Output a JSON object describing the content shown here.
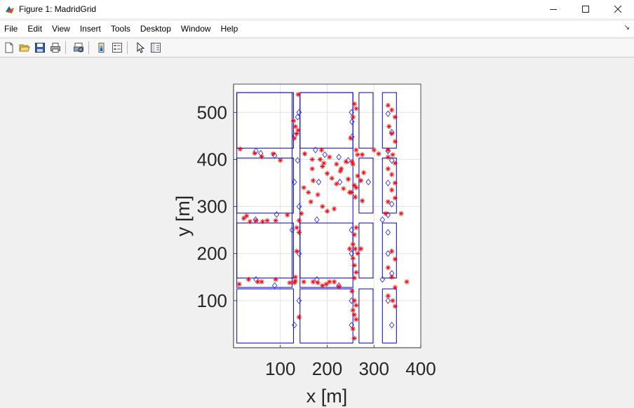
{
  "window": {
    "title": "Figure 1: MadridGrid"
  },
  "menu": [
    "File",
    "Edit",
    "View",
    "Insert",
    "Tools",
    "Desktop",
    "Window",
    "Help"
  ],
  "toolbar": [
    "new-figure-icon",
    "open-file-icon",
    "save-icon",
    "print-icon",
    "print-preview-icon",
    "colorbar-icon",
    "legend-icon",
    "pointer-icon",
    "property-editor-icon"
  ],
  "colors": {
    "blocks": "#0000cc",
    "diamonds": "#3333ee",
    "stars": "#ff0000",
    "grid": "#e2e2e2"
  },
  "chart_data": {
    "type": "scatter",
    "title": "",
    "xlabel": "x [m]",
    "ylabel": "y [m]",
    "xlim": [
      0,
      400
    ],
    "ylim": [
      0,
      560
    ],
    "xticks": [
      100,
      200,
      300,
      400
    ],
    "yticks": [
      100,
      200,
      300,
      400,
      500
    ],
    "grid": true,
    "building_blocks": [
      [
        7,
        125,
        128,
        542
      ],
      [
        142,
        255,
        128,
        542
      ],
      [
        7,
        128,
        10,
        125
      ],
      [
        142,
        255,
        10,
        125
      ],
      [
        7,
        128,
        148,
        265
      ],
      [
        142,
        255,
        148,
        265
      ],
      [
        7,
        128,
        286,
        403
      ],
      [
        7,
        128,
        424,
        542
      ],
      [
        142,
        255,
        424,
        542
      ],
      [
        268,
        298,
        424,
        542
      ],
      [
        318,
        348,
        424,
        542
      ],
      [
        268,
        298,
        286,
        403
      ],
      [
        318,
        348,
        286,
        403
      ],
      [
        268,
        298,
        148,
        265
      ],
      [
        318,
        348,
        148,
        265
      ],
      [
        268,
        298,
        10,
        125
      ],
      [
        318,
        348,
        10,
        125
      ]
    ],
    "diamonds": [
      [
        140,
        500
      ],
      [
        137,
        490
      ],
      [
        130,
        450
      ],
      [
        252,
        500
      ],
      [
        253,
        480
      ],
      [
        253,
        448
      ],
      [
        48,
        418
      ],
      [
        58,
        413
      ],
      [
        88,
        408
      ],
      [
        137,
        398
      ],
      [
        175,
        420
      ],
      [
        195,
        410
      ],
      [
        225,
        405
      ],
      [
        245,
        398
      ],
      [
        130,
        352
      ],
      [
        182,
        352
      ],
      [
        227,
        352
      ],
      [
        288,
        352
      ],
      [
        140,
        300
      ],
      [
        92,
        283
      ],
      [
        47,
        272
      ],
      [
        178,
        272
      ],
      [
        125,
        250
      ],
      [
        252,
        250
      ],
      [
        140,
        200
      ],
      [
        252,
        200
      ],
      [
        48,
        145
      ],
      [
        88,
        132
      ],
      [
        178,
        145
      ],
      [
        225,
        132
      ],
      [
        140,
        100
      ],
      [
        130,
        48
      ],
      [
        252,
        100
      ],
      [
        252,
        48
      ],
      [
        330,
        497
      ],
      [
        338,
        458
      ],
      [
        330,
        418
      ],
      [
        338,
        398
      ],
      [
        330,
        350
      ],
      [
        338,
        305
      ],
      [
        330,
        282
      ],
      [
        318,
        272
      ],
      [
        330,
        245
      ],
      [
        330,
        200
      ],
      [
        338,
        158
      ],
      [
        318,
        145
      ],
      [
        330,
        100
      ],
      [
        338,
        48
      ]
    ],
    "stars": [
      [
        138,
        538
      ],
      [
        128,
        482
      ],
      [
        132,
        470
      ],
      [
        138,
        462
      ],
      [
        135,
        455
      ],
      [
        130,
        445
      ],
      [
        258,
        518
      ],
      [
        262,
        508
      ],
      [
        255,
        490
      ],
      [
        250,
        445
      ],
      [
        262,
        420
      ],
      [
        14,
        422
      ],
      [
        45,
        413
      ],
      [
        60,
        406
      ],
      [
        85,
        412
      ],
      [
        100,
        398
      ],
      [
        152,
        412
      ],
      [
        168,
        400
      ],
      [
        188,
        420
      ],
      [
        205,
        405
      ],
      [
        220,
        390
      ],
      [
        228,
        375
      ],
      [
        240,
        395
      ],
      [
        255,
        390
      ],
      [
        265,
        410
      ],
      [
        275,
        410
      ],
      [
        168,
        380
      ],
      [
        190,
        385
      ],
      [
        200,
        370
      ],
      [
        210,
        360
      ],
      [
        220,
        348
      ],
      [
        235,
        338
      ],
      [
        248,
        330
      ],
      [
        260,
        320
      ],
      [
        275,
        312
      ],
      [
        262,
        340
      ],
      [
        272,
        355
      ],
      [
        278,
        372
      ],
      [
        150,
        340
      ],
      [
        160,
        330
      ],
      [
        170,
        355
      ],
      [
        180,
        325
      ],
      [
        190,
        300
      ],
      [
        200,
        290
      ],
      [
        215,
        295
      ],
      [
        165,
        310
      ],
      [
        145,
        285
      ],
      [
        140,
        270
      ],
      [
        252,
        330
      ],
      [
        258,
        345
      ],
      [
        265,
        365
      ],
      [
        253,
        395
      ],
      [
        185,
        400
      ],
      [
        193,
        392
      ],
      [
        230,
        380
      ],
      [
        245,
        358
      ],
      [
        22,
        275
      ],
      [
        28,
        280
      ],
      [
        35,
        268
      ],
      [
        48,
        270
      ],
      [
        62,
        268
      ],
      [
        72,
        270
      ],
      [
        90,
        270
      ],
      [
        115,
        282
      ],
      [
        135,
        255
      ],
      [
        140,
        245
      ],
      [
        135,
        205
      ],
      [
        132,
        150
      ],
      [
        132,
        142
      ],
      [
        130,
        138
      ],
      [
        12,
        135
      ],
      [
        32,
        145
      ],
      [
        52,
        140
      ],
      [
        60,
        140
      ],
      [
        90,
        145
      ],
      [
        120,
        138
      ],
      [
        150,
        140
      ],
      [
        170,
        140
      ],
      [
        180,
        138
      ],
      [
        190,
        132
      ],
      [
        198,
        135
      ],
      [
        205,
        140
      ],
      [
        215,
        140
      ],
      [
        225,
        130
      ],
      [
        262,
        255
      ],
      [
        258,
        240
      ],
      [
        255,
        220
      ],
      [
        260,
        210
      ],
      [
        265,
        200
      ],
      [
        255,
        190
      ],
      [
        258,
        175
      ],
      [
        262,
        160
      ],
      [
        258,
        148
      ],
      [
        253,
        120
      ],
      [
        258,
        100
      ],
      [
        262,
        90
      ],
      [
        255,
        80
      ],
      [
        258,
        70
      ],
      [
        262,
        60
      ],
      [
        255,
        40
      ],
      [
        258,
        20
      ],
      [
        140,
        65
      ],
      [
        330,
        515
      ],
      [
        338,
        505
      ],
      [
        345,
        490
      ],
      [
        332,
        470
      ],
      [
        338,
        455
      ],
      [
        345,
        438
      ],
      [
        330,
        420
      ],
      [
        340,
        410
      ],
      [
        345,
        392
      ],
      [
        330,
        380
      ],
      [
        338,
        368
      ],
      [
        345,
        350
      ],
      [
        338,
        335
      ],
      [
        345,
        318
      ],
      [
        330,
        310
      ],
      [
        325,
        285
      ],
      [
        358,
        285
      ],
      [
        338,
        205
      ],
      [
        345,
        188
      ],
      [
        330,
        170
      ],
      [
        338,
        150
      ],
      [
        345,
        128
      ],
      [
        330,
        110
      ],
      [
        340,
        100
      ],
      [
        345,
        88
      ],
      [
        370,
        140
      ],
      [
        300,
        420
      ],
      [
        310,
        412
      ],
      [
        330,
        405
      ],
      [
        272,
        210
      ],
      [
        248,
        210
      ]
    ]
  }
}
